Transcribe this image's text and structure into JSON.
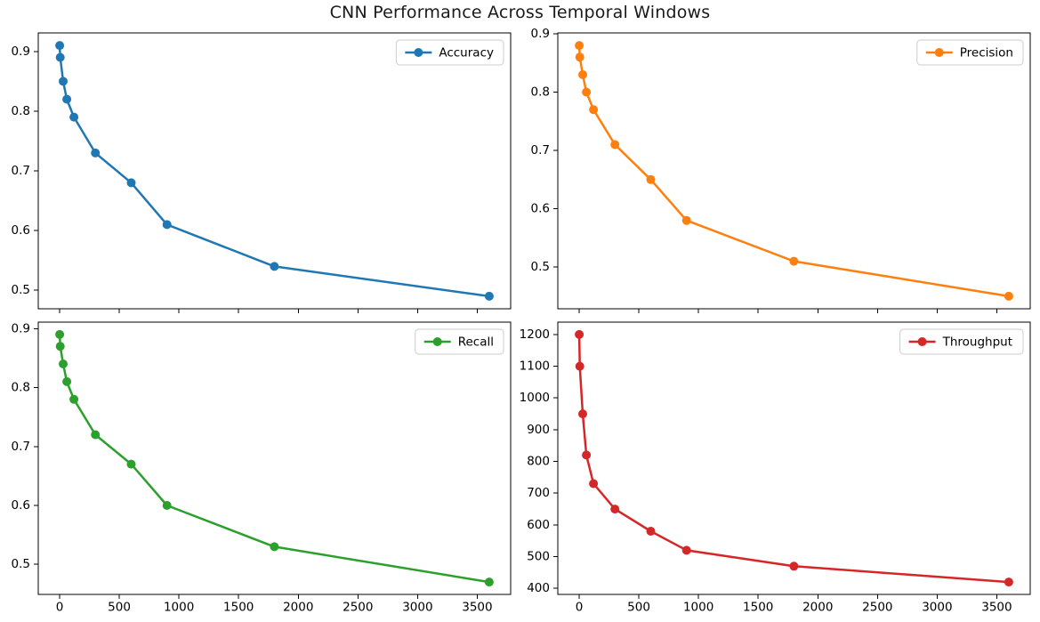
{
  "title": "CNN Performance Across Temporal Windows",
  "chart_data": [
    {
      "type": "line",
      "name": "accuracy",
      "legend": "Accuracy",
      "color": "#1f77b4",
      "x": [
        1,
        5,
        30,
        60,
        120,
        300,
        600,
        900,
        1800,
        3600
      ],
      "y": [
        0.91,
        0.89,
        0.85,
        0.82,
        0.79,
        0.73,
        0.68,
        0.61,
        0.54,
        0.49
      ],
      "xlabel": "",
      "ylabel": "",
      "xlim": [
        -179,
        3780
      ],
      "ylim": [
        0.469,
        0.931
      ],
      "xticks": [
        0,
        500,
        1000,
        1500,
        2000,
        2500,
        3000,
        3500
      ],
      "xticklabels": [
        "0",
        "500",
        "1000",
        "1500",
        "2000",
        "2500",
        "3000",
        "3500"
      ],
      "show_xticklabels": false,
      "yticks": [
        0.5,
        0.6,
        0.7,
        0.8,
        0.9
      ],
      "yticklabels": [
        "0.5",
        "0.6",
        "0.7",
        "0.8",
        "0.9"
      ],
      "grid": false,
      "marker": "o",
      "legend_position": "upper right"
    },
    {
      "type": "line",
      "name": "precision",
      "legend": "Precision",
      "color": "#ff7f0e",
      "x": [
        1,
        5,
        30,
        60,
        120,
        300,
        600,
        900,
        1800,
        3600
      ],
      "y": [
        0.88,
        0.86,
        0.83,
        0.8,
        0.77,
        0.71,
        0.65,
        0.58,
        0.51,
        0.45
      ],
      "xlabel": "",
      "ylabel": "",
      "xlim": [
        -179,
        3780
      ],
      "ylim": [
        0.4285,
        0.9015
      ],
      "xticks": [
        0,
        500,
        1000,
        1500,
        2000,
        2500,
        3000,
        3500
      ],
      "xticklabels": [
        "0",
        "500",
        "1000",
        "1500",
        "2000",
        "2500",
        "3000",
        "3500"
      ],
      "show_xticklabels": false,
      "yticks": [
        0.5,
        0.6,
        0.7,
        0.8,
        0.9
      ],
      "yticklabels": [
        "0.5",
        "0.6",
        "0.7",
        "0.8",
        "0.9"
      ],
      "grid": false,
      "marker": "o",
      "legend_position": "upper right"
    },
    {
      "type": "line",
      "name": "recall",
      "legend": "Recall",
      "color": "#2ca02c",
      "x": [
        1,
        5,
        30,
        60,
        120,
        300,
        600,
        900,
        1800,
        3600
      ],
      "y": [
        0.89,
        0.87,
        0.84,
        0.81,
        0.78,
        0.72,
        0.67,
        0.6,
        0.53,
        0.47
      ],
      "xlabel": "",
      "ylabel": "",
      "xlim": [
        -179,
        3780
      ],
      "ylim": [
        0.449,
        0.911
      ],
      "xticks": [
        0,
        500,
        1000,
        1500,
        2000,
        2500,
        3000,
        3500
      ],
      "xticklabels": [
        "0",
        "500",
        "1000",
        "1500",
        "2000",
        "2500",
        "3000",
        "3500"
      ],
      "show_xticklabels": true,
      "yticks": [
        0.5,
        0.6,
        0.7,
        0.8,
        0.9
      ],
      "yticklabels": [
        "0.5",
        "0.6",
        "0.7",
        "0.8",
        "0.9"
      ],
      "grid": false,
      "marker": "o",
      "legend_position": "upper right"
    },
    {
      "type": "line",
      "name": "throughput",
      "legend": "Throughput",
      "color": "#d62728",
      "x": [
        1,
        5,
        30,
        60,
        120,
        300,
        600,
        900,
        1800,
        3600
      ],
      "y": [
        1200,
        1100,
        950,
        820,
        730,
        650,
        580,
        520,
        470,
        420
      ],
      "xlabel": "",
      "ylabel": "",
      "xlim": [
        -179,
        3780
      ],
      "ylim": [
        381,
        1239
      ],
      "xticks": [
        0,
        500,
        1000,
        1500,
        2000,
        2500,
        3000,
        3500
      ],
      "xticklabels": [
        "0",
        "500",
        "1000",
        "1500",
        "2000",
        "2500",
        "3000",
        "3500"
      ],
      "show_xticklabels": true,
      "yticks": [
        400,
        500,
        600,
        700,
        800,
        900,
        1000,
        1100,
        1200
      ],
      "yticklabels": [
        "400",
        "500",
        "600",
        "700",
        "800",
        "900",
        "1000",
        "1100",
        "1200"
      ],
      "grid": false,
      "marker": "o",
      "legend_position": "upper right"
    }
  ]
}
